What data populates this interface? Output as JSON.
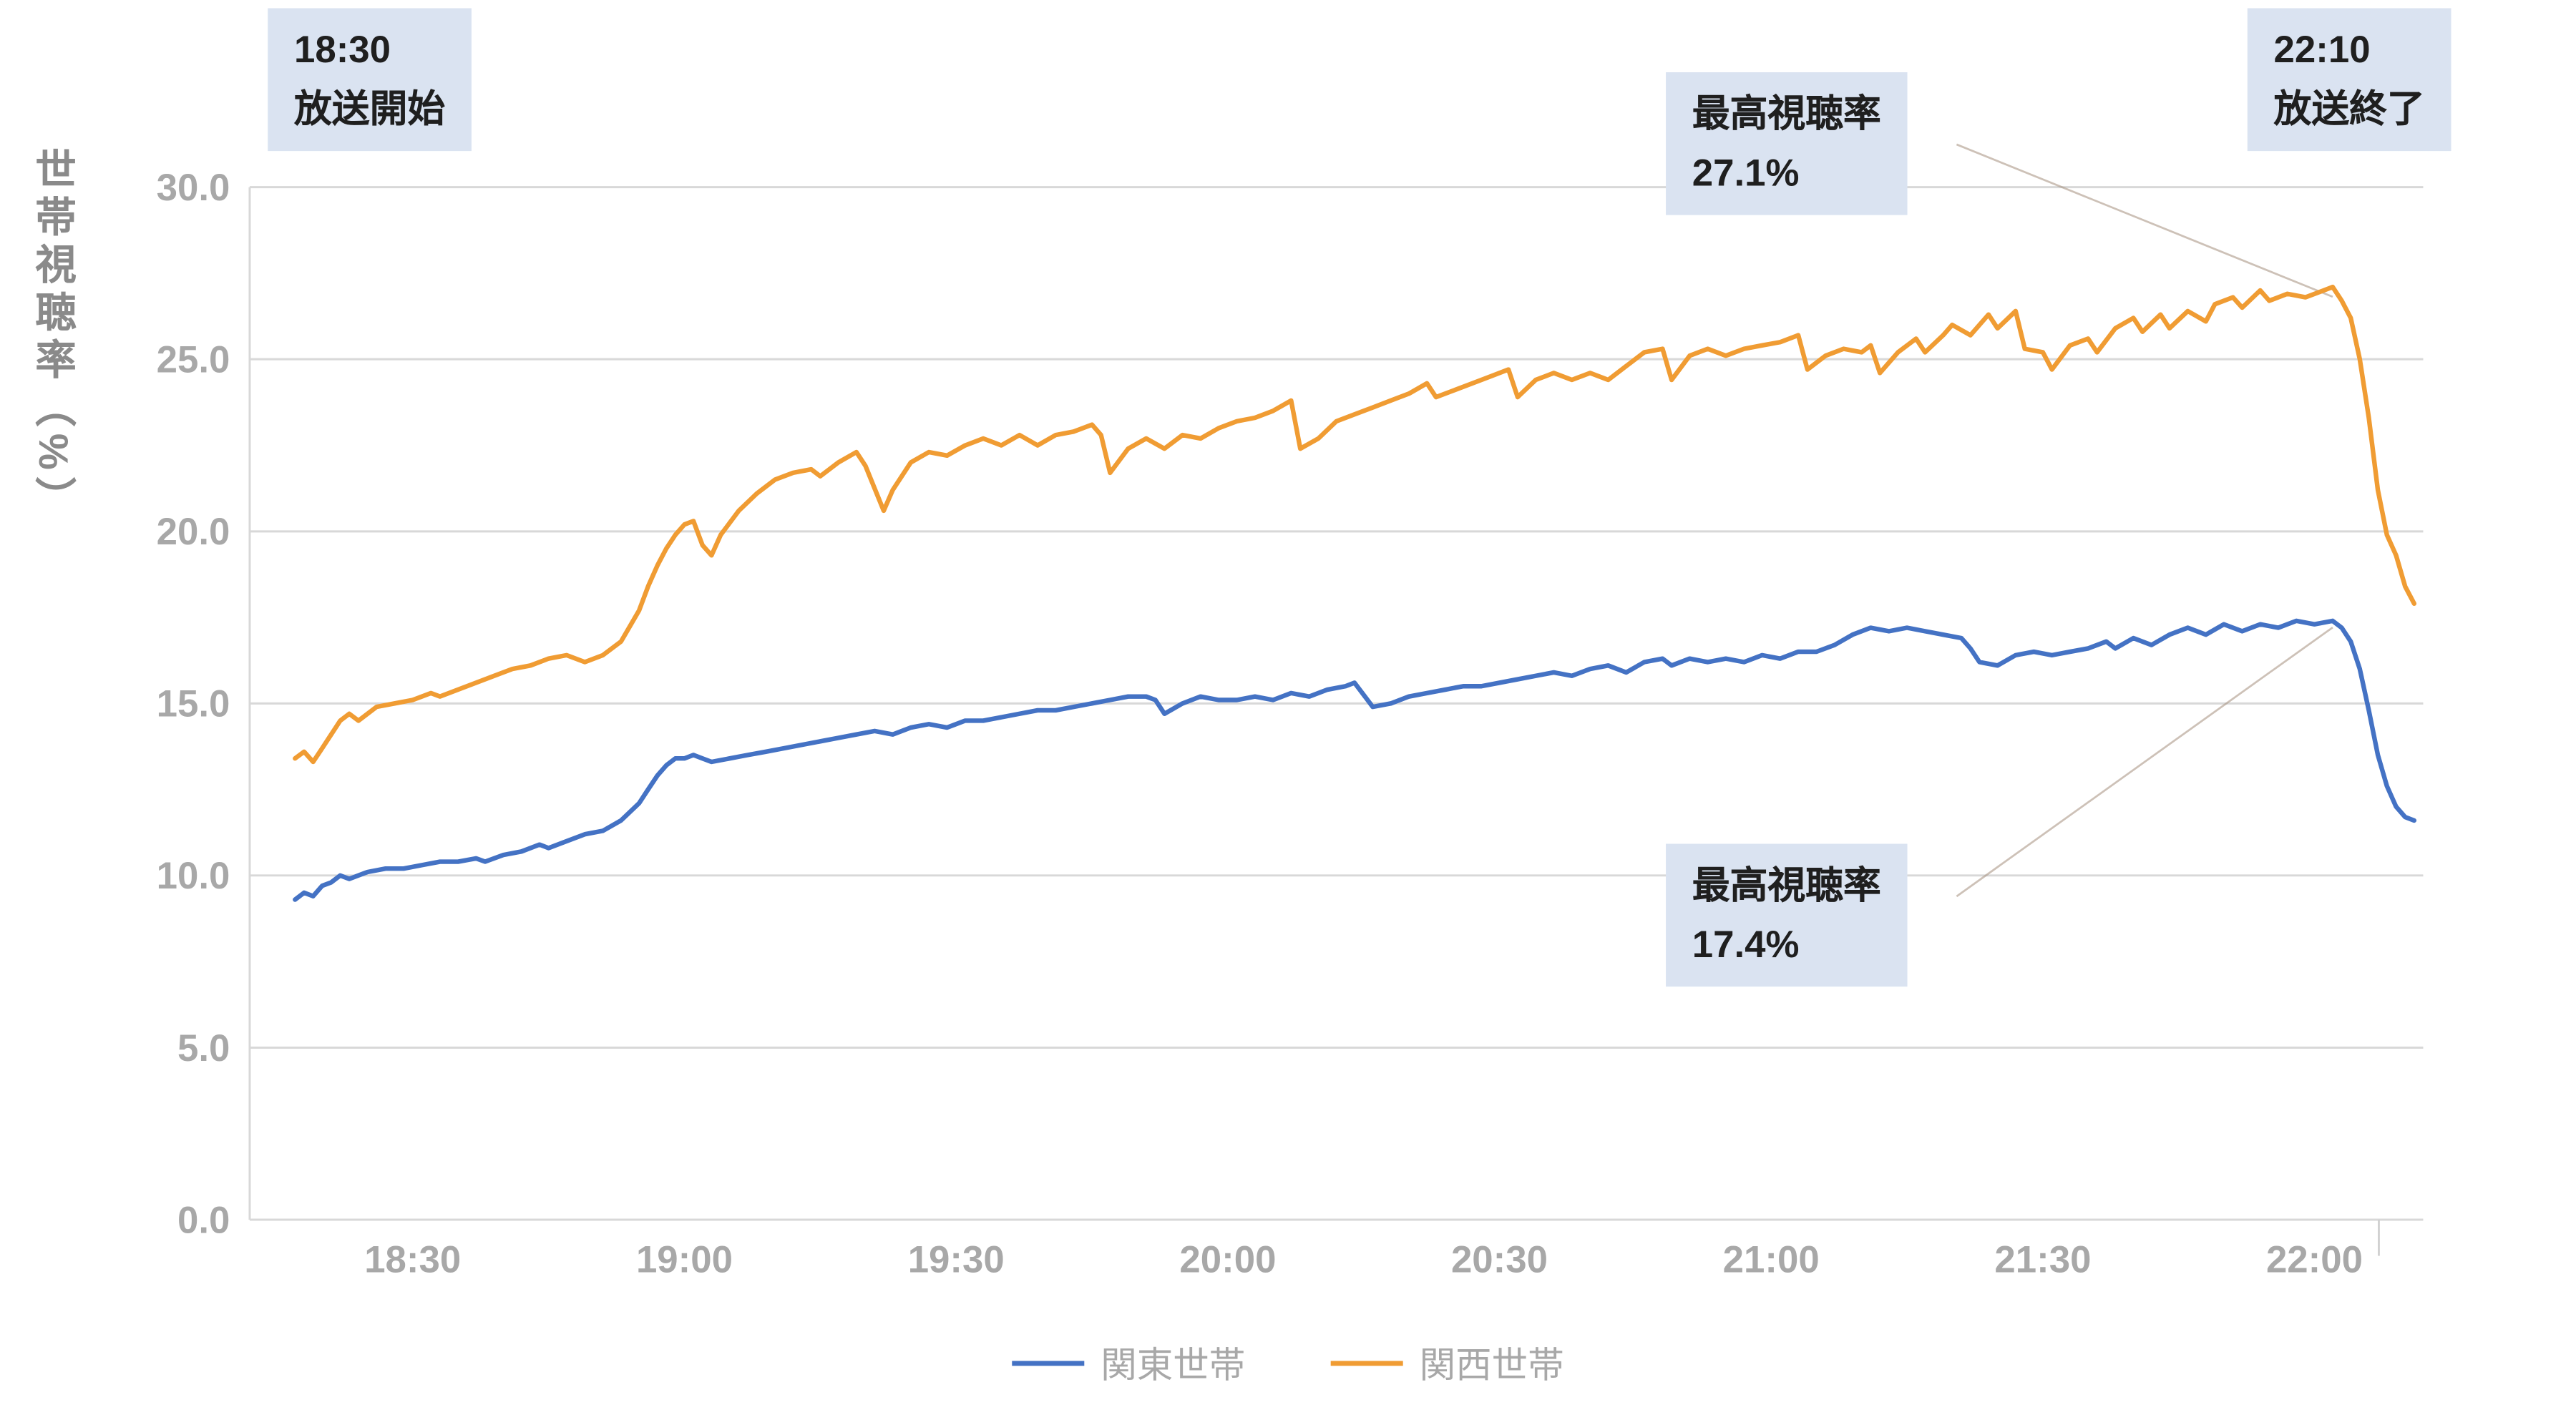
{
  "y_axis_title": "世帯視聴率（%）",
  "annotations": {
    "start": {
      "line1": "18:30",
      "line2": "放送開始"
    },
    "end": {
      "line1": "22:10",
      "line2": "放送終了"
    },
    "peak_kansai": {
      "line1": "最高視聴率",
      "line2": "27.1%"
    },
    "peak_kanto": {
      "line1": "最高視聴率",
      "line2": "17.4%"
    }
  },
  "legend": [
    {
      "label": "関東世帯",
      "color": "#4472C4"
    },
    {
      "label": "関西世帯",
      "color": "#F09C33"
    }
  ],
  "chart_data": {
    "type": "line",
    "title": "",
    "ylabel": "世帯視聴率（%）",
    "xlabel": "",
    "x_unit": "minutes_after_18:00",
    "xlim": [
      12,
      252
    ],
    "ylim": [
      0,
      30
    ],
    "grid": true,
    "legend_position": "bottom",
    "x_ticks": [
      {
        "t": 30,
        "label": "18:30"
      },
      {
        "t": 60,
        "label": "19:00"
      },
      {
        "t": 90,
        "label": "19:30"
      },
      {
        "t": 120,
        "label": "20:00"
      },
      {
        "t": 150,
        "label": "20:30"
      },
      {
        "t": 180,
        "label": "21:00"
      },
      {
        "t": 210,
        "label": "21:30"
      },
      {
        "t": 240,
        "label": "22:00"
      }
    ],
    "y_ticks": [
      {
        "v": 0,
        "label": "0.0"
      },
      {
        "v": 5,
        "label": "5.0"
      },
      {
        "v": 10,
        "label": "10.0"
      },
      {
        "v": 15,
        "label": "15.0"
      },
      {
        "v": 20,
        "label": "20.0"
      },
      {
        "v": 25,
        "label": "25.0"
      },
      {
        "v": 30,
        "label": "30.0"
      }
    ],
    "annotation_targets": {
      "kansai_peak": {
        "t": 242,
        "v": 27.1
      },
      "kanto_peak": {
        "t": 242,
        "v": 17.4
      }
    },
    "series": [
      {
        "name": "関東世帯",
        "color": "#4472C4",
        "points": [
          [
            17,
            9.3
          ],
          [
            18,
            9.5
          ],
          [
            19,
            9.4
          ],
          [
            20,
            9.7
          ],
          [
            21,
            9.8
          ],
          [
            22,
            10.0
          ],
          [
            23,
            9.9
          ],
          [
            25,
            10.1
          ],
          [
            27,
            10.2
          ],
          [
            29,
            10.2
          ],
          [
            31,
            10.3
          ],
          [
            33,
            10.4
          ],
          [
            35,
            10.4
          ],
          [
            37,
            10.5
          ],
          [
            38,
            10.4
          ],
          [
            40,
            10.6
          ],
          [
            42,
            10.7
          ],
          [
            44,
            10.9
          ],
          [
            45,
            10.8
          ],
          [
            47,
            11.0
          ],
          [
            49,
            11.2
          ],
          [
            51,
            11.3
          ],
          [
            53,
            11.6
          ],
          [
            55,
            12.1
          ],
          [
            56,
            12.5
          ],
          [
            57,
            12.9
          ],
          [
            58,
            13.2
          ],
          [
            59,
            13.4
          ],
          [
            60,
            13.4
          ],
          [
            61,
            13.5
          ],
          [
            62,
            13.4
          ],
          [
            63,
            13.3
          ],
          [
            65,
            13.4
          ],
          [
            67,
            13.5
          ],
          [
            69,
            13.6
          ],
          [
            71,
            13.7
          ],
          [
            73,
            13.8
          ],
          [
            75,
            13.9
          ],
          [
            77,
            14.0
          ],
          [
            79,
            14.1
          ],
          [
            81,
            14.2
          ],
          [
            83,
            14.1
          ],
          [
            85,
            14.3
          ],
          [
            87,
            14.4
          ],
          [
            89,
            14.3
          ],
          [
            91,
            14.5
          ],
          [
            93,
            14.5
          ],
          [
            95,
            14.6
          ],
          [
            97,
            14.7
          ],
          [
            99,
            14.8
          ],
          [
            101,
            14.8
          ],
          [
            103,
            14.9
          ],
          [
            105,
            15.0
          ],
          [
            107,
            15.1
          ],
          [
            109,
            15.2
          ],
          [
            111,
            15.2
          ],
          [
            112,
            15.1
          ],
          [
            113,
            14.7
          ],
          [
            115,
            15.0
          ],
          [
            117,
            15.2
          ],
          [
            119,
            15.1
          ],
          [
            121,
            15.1
          ],
          [
            123,
            15.2
          ],
          [
            125,
            15.1
          ],
          [
            127,
            15.3
          ],
          [
            129,
            15.2
          ],
          [
            131,
            15.4
          ],
          [
            133,
            15.5
          ],
          [
            134,
            15.6
          ],
          [
            136,
            14.9
          ],
          [
            138,
            15.0
          ],
          [
            140,
            15.2
          ],
          [
            142,
            15.3
          ],
          [
            144,
            15.4
          ],
          [
            146,
            15.5
          ],
          [
            148,
            15.5
          ],
          [
            150,
            15.6
          ],
          [
            152,
            15.7
          ],
          [
            154,
            15.8
          ],
          [
            156,
            15.9
          ],
          [
            158,
            15.8
          ],
          [
            160,
            16.0
          ],
          [
            162,
            16.1
          ],
          [
            164,
            15.9
          ],
          [
            166,
            16.2
          ],
          [
            168,
            16.3
          ],
          [
            169,
            16.1
          ],
          [
            171,
            16.3
          ],
          [
            173,
            16.2
          ],
          [
            175,
            16.3
          ],
          [
            177,
            16.2
          ],
          [
            179,
            16.4
          ],
          [
            181,
            16.3
          ],
          [
            183,
            16.5
          ],
          [
            185,
            16.5
          ],
          [
            187,
            16.7
          ],
          [
            189,
            17.0
          ],
          [
            191,
            17.2
          ],
          [
            193,
            17.1
          ],
          [
            195,
            17.2
          ],
          [
            197,
            17.1
          ],
          [
            199,
            17.0
          ],
          [
            201,
            16.9
          ],
          [
            202,
            16.6
          ],
          [
            203,
            16.2
          ],
          [
            205,
            16.1
          ],
          [
            207,
            16.4
          ],
          [
            209,
            16.5
          ],
          [
            211,
            16.4
          ],
          [
            213,
            16.5
          ],
          [
            215,
            16.6
          ],
          [
            217,
            16.8
          ],
          [
            218,
            16.6
          ],
          [
            220,
            16.9
          ],
          [
            222,
            16.7
          ],
          [
            224,
            17.0
          ],
          [
            226,
            17.2
          ],
          [
            228,
            17.0
          ],
          [
            230,
            17.3
          ],
          [
            232,
            17.1
          ],
          [
            234,
            17.3
          ],
          [
            236,
            17.2
          ],
          [
            238,
            17.4
          ],
          [
            240,
            17.3
          ],
          [
            242,
            17.4
          ],
          [
            243,
            17.2
          ],
          [
            244,
            16.8
          ],
          [
            245,
            16.0
          ],
          [
            246,
            14.8
          ],
          [
            247,
            13.5
          ],
          [
            248,
            12.6
          ],
          [
            249,
            12.0
          ],
          [
            250,
            11.7
          ],
          [
            251,
            11.6
          ]
        ]
      },
      {
        "name": "関西世帯",
        "color": "#F09C33",
        "points": [
          [
            17,
            13.4
          ],
          [
            18,
            13.6
          ],
          [
            19,
            13.3
          ],
          [
            20,
            13.7
          ],
          [
            21,
            14.1
          ],
          [
            22,
            14.5
          ],
          [
            23,
            14.7
          ],
          [
            24,
            14.5
          ],
          [
            26,
            14.9
          ],
          [
            28,
            15.0
          ],
          [
            30,
            15.1
          ],
          [
            32,
            15.3
          ],
          [
            33,
            15.2
          ],
          [
            35,
            15.4
          ],
          [
            37,
            15.6
          ],
          [
            39,
            15.8
          ],
          [
            41,
            16.0
          ],
          [
            43,
            16.1
          ],
          [
            45,
            16.3
          ],
          [
            47,
            16.4
          ],
          [
            49,
            16.2
          ],
          [
            51,
            16.4
          ],
          [
            53,
            16.8
          ],
          [
            55,
            17.7
          ],
          [
            56,
            18.4
          ],
          [
            57,
            19.0
          ],
          [
            58,
            19.5
          ],
          [
            59,
            19.9
          ],
          [
            60,
            20.2
          ],
          [
            61,
            20.3
          ],
          [
            62,
            19.6
          ],
          [
            63,
            19.3
          ],
          [
            64,
            19.9
          ],
          [
            66,
            20.6
          ],
          [
            68,
            21.1
          ],
          [
            70,
            21.5
          ],
          [
            72,
            21.7
          ],
          [
            74,
            21.8
          ],
          [
            75,
            21.6
          ],
          [
            77,
            22.0
          ],
          [
            79,
            22.3
          ],
          [
            80,
            21.9
          ],
          [
            82,
            20.6
          ],
          [
            83,
            21.2
          ],
          [
            85,
            22.0
          ],
          [
            87,
            22.3
          ],
          [
            89,
            22.2
          ],
          [
            91,
            22.5
          ],
          [
            93,
            22.7
          ],
          [
            95,
            22.5
          ],
          [
            97,
            22.8
          ],
          [
            99,
            22.5
          ],
          [
            101,
            22.8
          ],
          [
            103,
            22.9
          ],
          [
            105,
            23.1
          ],
          [
            106,
            22.8
          ],
          [
            107,
            21.7
          ],
          [
            109,
            22.4
          ],
          [
            111,
            22.7
          ],
          [
            113,
            22.4
          ],
          [
            115,
            22.8
          ],
          [
            117,
            22.7
          ],
          [
            119,
            23.0
          ],
          [
            121,
            23.2
          ],
          [
            123,
            23.3
          ],
          [
            125,
            23.5
          ],
          [
            127,
            23.8
          ],
          [
            128,
            22.4
          ],
          [
            130,
            22.7
          ],
          [
            132,
            23.2
          ],
          [
            134,
            23.4
          ],
          [
            136,
            23.6
          ],
          [
            138,
            23.8
          ],
          [
            140,
            24.0
          ],
          [
            142,
            24.3
          ],
          [
            143,
            23.9
          ],
          [
            145,
            24.1
          ],
          [
            147,
            24.3
          ],
          [
            149,
            24.5
          ],
          [
            151,
            24.7
          ],
          [
            152,
            23.9
          ],
          [
            154,
            24.4
          ],
          [
            156,
            24.6
          ],
          [
            158,
            24.4
          ],
          [
            160,
            24.6
          ],
          [
            162,
            24.4
          ],
          [
            164,
            24.8
          ],
          [
            166,
            25.2
          ],
          [
            168,
            25.3
          ],
          [
            169,
            24.4
          ],
          [
            171,
            25.1
          ],
          [
            173,
            25.3
          ],
          [
            175,
            25.1
          ],
          [
            177,
            25.3
          ],
          [
            179,
            25.4
          ],
          [
            181,
            25.5
          ],
          [
            183,
            25.7
          ],
          [
            184,
            24.7
          ],
          [
            186,
            25.1
          ],
          [
            188,
            25.3
          ],
          [
            190,
            25.2
          ],
          [
            191,
            25.4
          ],
          [
            192,
            24.6
          ],
          [
            194,
            25.2
          ],
          [
            196,
            25.6
          ],
          [
            197,
            25.2
          ],
          [
            199,
            25.7
          ],
          [
            200,
            26.0
          ],
          [
            202,
            25.7
          ],
          [
            204,
            26.3
          ],
          [
            205,
            25.9
          ],
          [
            207,
            26.4
          ],
          [
            208,
            25.3
          ],
          [
            210,
            25.2
          ],
          [
            211,
            24.7
          ],
          [
            213,
            25.4
          ],
          [
            215,
            25.6
          ],
          [
            216,
            25.2
          ],
          [
            218,
            25.9
          ],
          [
            220,
            26.2
          ],
          [
            221,
            25.8
          ],
          [
            223,
            26.3
          ],
          [
            224,
            25.9
          ],
          [
            226,
            26.4
          ],
          [
            228,
            26.1
          ],
          [
            229,
            26.6
          ],
          [
            231,
            26.8
          ],
          [
            232,
            26.5
          ],
          [
            234,
            27.0
          ],
          [
            235,
            26.7
          ],
          [
            237,
            26.9
          ],
          [
            239,
            26.8
          ],
          [
            241,
            27.0
          ],
          [
            242,
            27.1
          ],
          [
            243,
            26.7
          ],
          [
            244,
            26.2
          ],
          [
            245,
            25.0
          ],
          [
            246,
            23.3
          ],
          [
            247,
            21.2
          ],
          [
            248,
            19.9
          ],
          [
            249,
            19.3
          ],
          [
            250,
            18.4
          ],
          [
            251,
            17.9
          ]
        ]
      }
    ]
  }
}
